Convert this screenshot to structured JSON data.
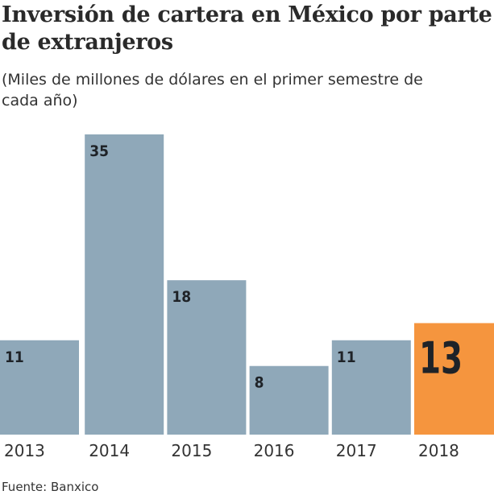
{
  "chart_data": {
    "type": "bar",
    "title": "Inversión de cartera en México por parte de extranjeros",
    "subtitle": "(Miles de millones de dólares en el primer semestre de cada año)",
    "categories": [
      "2013",
      "2014",
      "2015",
      "2016",
      "2017",
      "2018"
    ],
    "values": [
      11,
      35,
      18,
      8,
      11,
      13
    ],
    "highlight": "2018",
    "colors": {
      "default": "#8fa8b9",
      "highlight": "#f5953e"
    },
    "ylim": [
      0,
      35
    ],
    "grid": false,
    "source": "Fuente: Banxico"
  }
}
